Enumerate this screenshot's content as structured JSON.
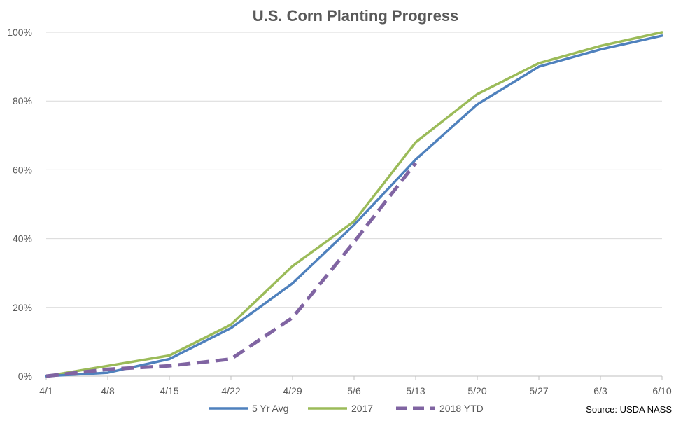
{
  "chart_data": {
    "type": "line",
    "title": "U.S. Corn Planting Progress",
    "xlabel": "",
    "ylabel": "",
    "categories": [
      "4/1",
      "4/8",
      "4/15",
      "4/22",
      "4/29",
      "5/6",
      "5/13",
      "5/20",
      "5/27",
      "6/3",
      "6/10"
    ],
    "ylim": [
      0,
      100
    ],
    "yticks": [
      0,
      20,
      40,
      60,
      80,
      100
    ],
    "ytick_labels": [
      "0%",
      "20%",
      "40%",
      "60%",
      "80%",
      "100%"
    ],
    "grid": true,
    "legend_position": "bottom",
    "series": [
      {
        "name": "5 Yr Avg",
        "color": "#4f81bd",
        "style": "solid",
        "values": [
          0,
          1,
          5,
          14,
          27,
          44,
          63,
          79,
          90,
          95,
          99
        ]
      },
      {
        "name": "2017",
        "color": "#9bbb59",
        "style": "solid",
        "values": [
          0,
          3,
          6,
          15,
          32,
          45,
          68,
          82,
          91,
          96,
          100
        ]
      },
      {
        "name": "2018 YTD",
        "color": "#8064a2",
        "style": "dashed",
        "values": [
          0,
          2,
          3,
          5,
          17,
          39,
          62,
          null,
          null,
          null,
          null
        ]
      }
    ],
    "source": "Source: USDA NASS"
  }
}
